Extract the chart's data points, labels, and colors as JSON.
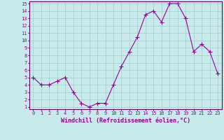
{
  "x": [
    0,
    1,
    2,
    3,
    4,
    5,
    6,
    7,
    8,
    9,
    10,
    11,
    12,
    13,
    14,
    15,
    16,
    17,
    18,
    19,
    20,
    21,
    22,
    23
  ],
  "y": [
    5.0,
    4.0,
    4.0,
    4.5,
    5.0,
    3.0,
    1.5,
    1.0,
    1.5,
    1.5,
    4.0,
    6.5,
    8.5,
    10.5,
    13.5,
    14.0,
    12.5,
    15.0,
    15.0,
    13.0,
    8.5,
    9.5,
    8.5,
    5.5
  ],
  "line_color": "#990099",
  "marker": "+",
  "marker_size": 4,
  "bg_color": "#c8eaea",
  "grid_color": "#a0cccc",
  "xlabel": "Windchill (Refroidissement éolien,°C)",
  "xlabel_color": "#990099",
  "tick_color": "#990099",
  "ylim": [
    1,
    15
  ],
  "xlim": [
    -0.5,
    23.5
  ],
  "yticks": [
    1,
    2,
    3,
    4,
    5,
    6,
    7,
    8,
    9,
    10,
    11,
    12,
    13,
    14,
    15
  ],
  "xticks": [
    0,
    1,
    2,
    3,
    4,
    5,
    6,
    7,
    8,
    9,
    10,
    11,
    12,
    13,
    14,
    15,
    16,
    17,
    18,
    19,
    20,
    21,
    22,
    23
  ],
  "spine_color": "#660066",
  "tick_fontsize": 5,
  "xlabel_fontsize": 6
}
